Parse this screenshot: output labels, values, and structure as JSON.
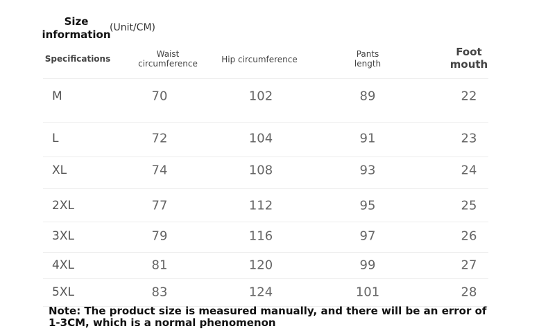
{
  "title": "Size information",
  "unit": "(Unit/CM)",
  "headers": [
    "Specifications",
    "Waist circumference",
    "Hip circumference",
    "Pants length",
    "Foot mouth"
  ],
  "rows": [
    [
      "M",
      "70",
      "102",
      "89",
      "22"
    ],
    [
      "L",
      "72",
      "104",
      "91",
      "23"
    ],
    [
      "XL",
      "74",
      "108",
      "93",
      "24"
    ],
    [
      "2XL",
      "77",
      "112",
      "95",
      "25"
    ],
    [
      "3XL",
      "79",
      "116",
      "97",
      "26"
    ],
    [
      "4XL",
      "81",
      "120",
      "99",
      "27"
    ],
    [
      "5XL",
      "83",
      "124",
      "101",
      "28"
    ]
  ],
  "note_line1": "Note: The product size is measured manually, and there will be an error of",
  "note_line2": "1-3CM, which is a normal phenomenon"
}
